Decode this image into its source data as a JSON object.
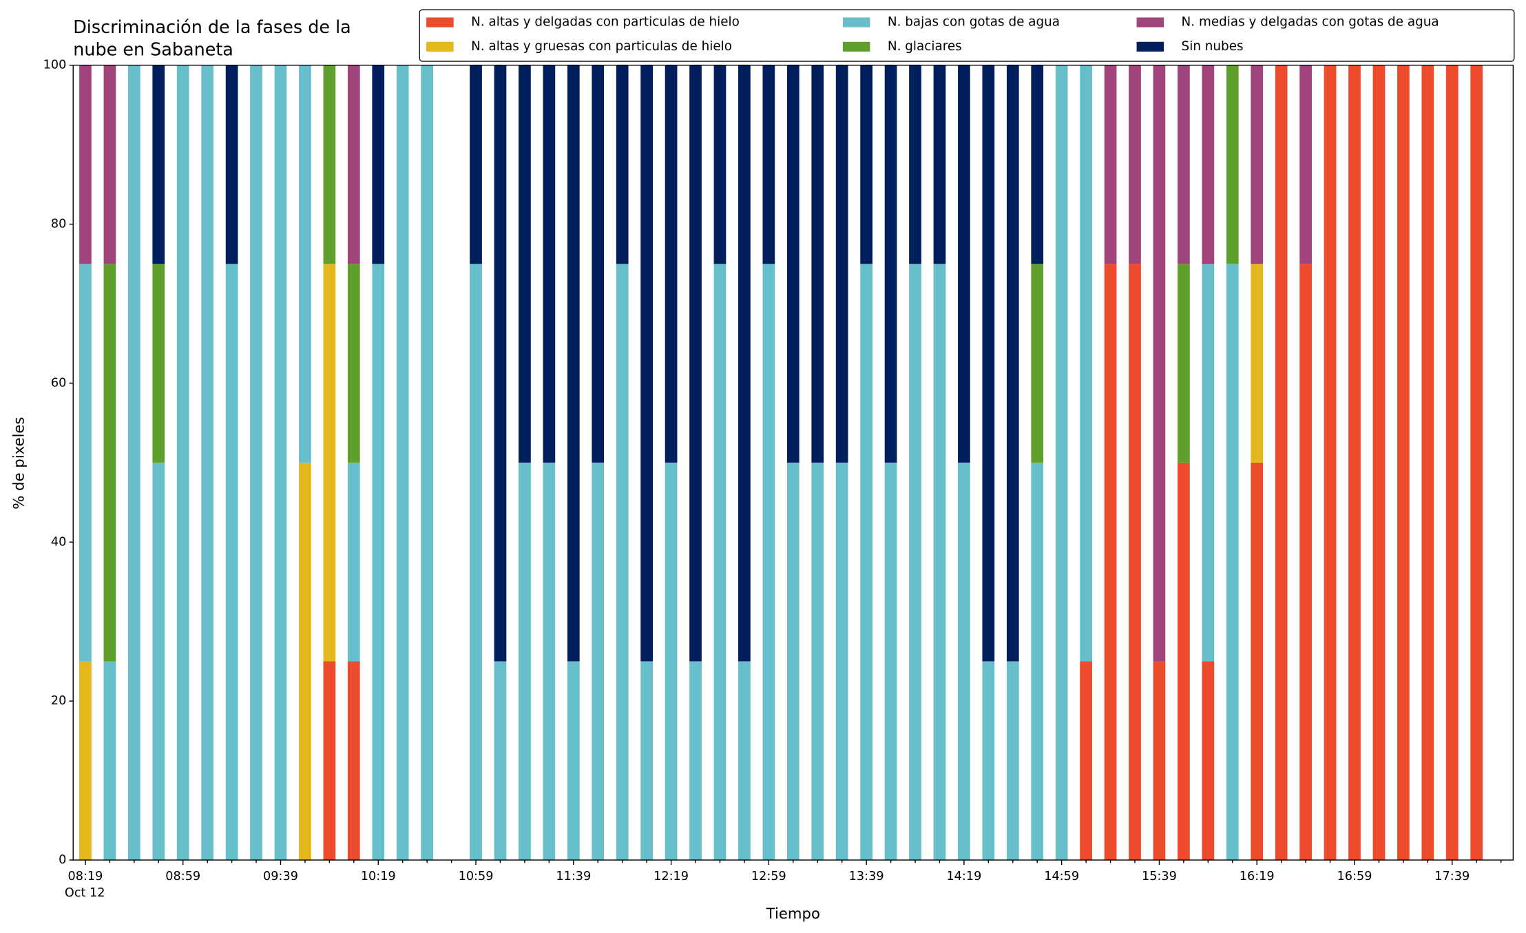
{
  "chart_data": {
    "type": "stacked_bar",
    "title": [
      "Discriminación de la fases de la",
      "nube en Sabaneta"
    ],
    "x_label": "Tiempo",
    "y_label": "% de pixeles",
    "date_label": "Oct 12",
    "categories": [
      "08:19",
      null,
      null,
      null,
      "08:59",
      null,
      null,
      null,
      "09:39",
      null,
      null,
      null,
      "10:19",
      null,
      null,
      null,
      "10:59",
      null,
      null,
      null,
      "11:39",
      null,
      null,
      null,
      "12:19",
      null,
      null,
      null,
      "12:59",
      null,
      null,
      null,
      "13:39",
      null,
      null,
      null,
      "14:19",
      null,
      null,
      null,
      "14:59",
      null,
      null,
      null,
      "15:39",
      null,
      null,
      null,
      "16:19",
      null,
      null,
      null,
      "16:59",
      null,
      null,
      null,
      "17:39",
      null
    ],
    "ylim": [
      0,
      100
    ],
    "yticks": [
      0,
      20,
      40,
      60,
      80,
      100
    ],
    "legend": "upper right",
    "series": [
      {
        "name": "N. altas y delgadas con particulas de hielo",
        "color": "#ee4a2c",
        "values": [
          0,
          0,
          0,
          0,
          0,
          0,
          0,
          0,
          0,
          0,
          25,
          25,
          0,
          0,
          0,
          0,
          0,
          0,
          0,
          0,
          0,
          0,
          0,
          0,
          0,
          0,
          0,
          0,
          0,
          0,
          0,
          0,
          0,
          0,
          0,
          0,
          0,
          0,
          0,
          0,
          0,
          25,
          75,
          75,
          25,
          50,
          25,
          0,
          50,
          100,
          75,
          100,
          100,
          100,
          100,
          100,
          100,
          100
        ]
      },
      {
        "name": "N. altas y gruesas con particulas de hielo",
        "color": "#e4b81c",
        "values": [
          25,
          0,
          0,
          0,
          0,
          0,
          0,
          0,
          0,
          50,
          50,
          0,
          0,
          0,
          0,
          0,
          0,
          0,
          0,
          0,
          0,
          0,
          0,
          0,
          0,
          0,
          0,
          0,
          0,
          0,
          0,
          0,
          0,
          0,
          0,
          0,
          0,
          0,
          0,
          0,
          0,
          0,
          0,
          0,
          0,
          0,
          0,
          0,
          25,
          0,
          0,
          0,
          0,
          0,
          0,
          0,
          0,
          0
        ]
      },
      {
        "name": "N. bajas con gotas de agua",
        "color": "#66bfca",
        "values": [
          50,
          25,
          100,
          50,
          100,
          100,
          75,
          100,
          100,
          50,
          0,
          25,
          75,
          100,
          100,
          0,
          75,
          25,
          50,
          50,
          25,
          50,
          75,
          25,
          50,
          25,
          75,
          25,
          75,
          50,
          50,
          50,
          75,
          50,
          75,
          75,
          50,
          25,
          25,
          50,
          100,
          75,
          0,
          0,
          0,
          0,
          50,
          75,
          0,
          0,
          0,
          0,
          0,
          0,
          0,
          0,
          0,
          0
        ]
      },
      {
        "name": "N. glaciares",
        "color": "#5f9f2c",
        "values": [
          0,
          50,
          0,
          25,
          0,
          0,
          0,
          0,
          0,
          0,
          25,
          25,
          0,
          0,
          0,
          0,
          0,
          0,
          0,
          0,
          0,
          0,
          0,
          0,
          0,
          0,
          0,
          0,
          0,
          0,
          0,
          0,
          0,
          0,
          0,
          0,
          0,
          0,
          0,
          25,
          0,
          0,
          0,
          0,
          0,
          25,
          0,
          25,
          0,
          0,
          0,
          0,
          0,
          0,
          0,
          0,
          0,
          0
        ]
      },
      {
        "name": "N. medias y delgadas con gotas de agua",
        "color": "#a1447b",
        "values": [
          25,
          25,
          0,
          0,
          0,
          0,
          0,
          0,
          0,
          0,
          0,
          25,
          0,
          0,
          0,
          0,
          0,
          0,
          0,
          0,
          0,
          0,
          0,
          0,
          0,
          0,
          0,
          0,
          0,
          0,
          0,
          0,
          0,
          0,
          0,
          0,
          0,
          0,
          0,
          0,
          0,
          0,
          25,
          25,
          75,
          25,
          25,
          0,
          25,
          0,
          25,
          0,
          0,
          0,
          0,
          0,
          0,
          0
        ]
      },
      {
        "name": "Sin nubes",
        "color": "#001f5c",
        "values": [
          0,
          0,
          0,
          25,
          0,
          0,
          25,
          0,
          0,
          0,
          0,
          0,
          25,
          0,
          0,
          0,
          25,
          75,
          50,
          50,
          75,
          50,
          25,
          75,
          50,
          75,
          25,
          75,
          25,
          50,
          50,
          50,
          25,
          50,
          25,
          25,
          50,
          75,
          75,
          25,
          0,
          0,
          0,
          0,
          0,
          0,
          0,
          0,
          0,
          0,
          0,
          0,
          0,
          0,
          0,
          0,
          0,
          0
        ]
      }
    ]
  }
}
